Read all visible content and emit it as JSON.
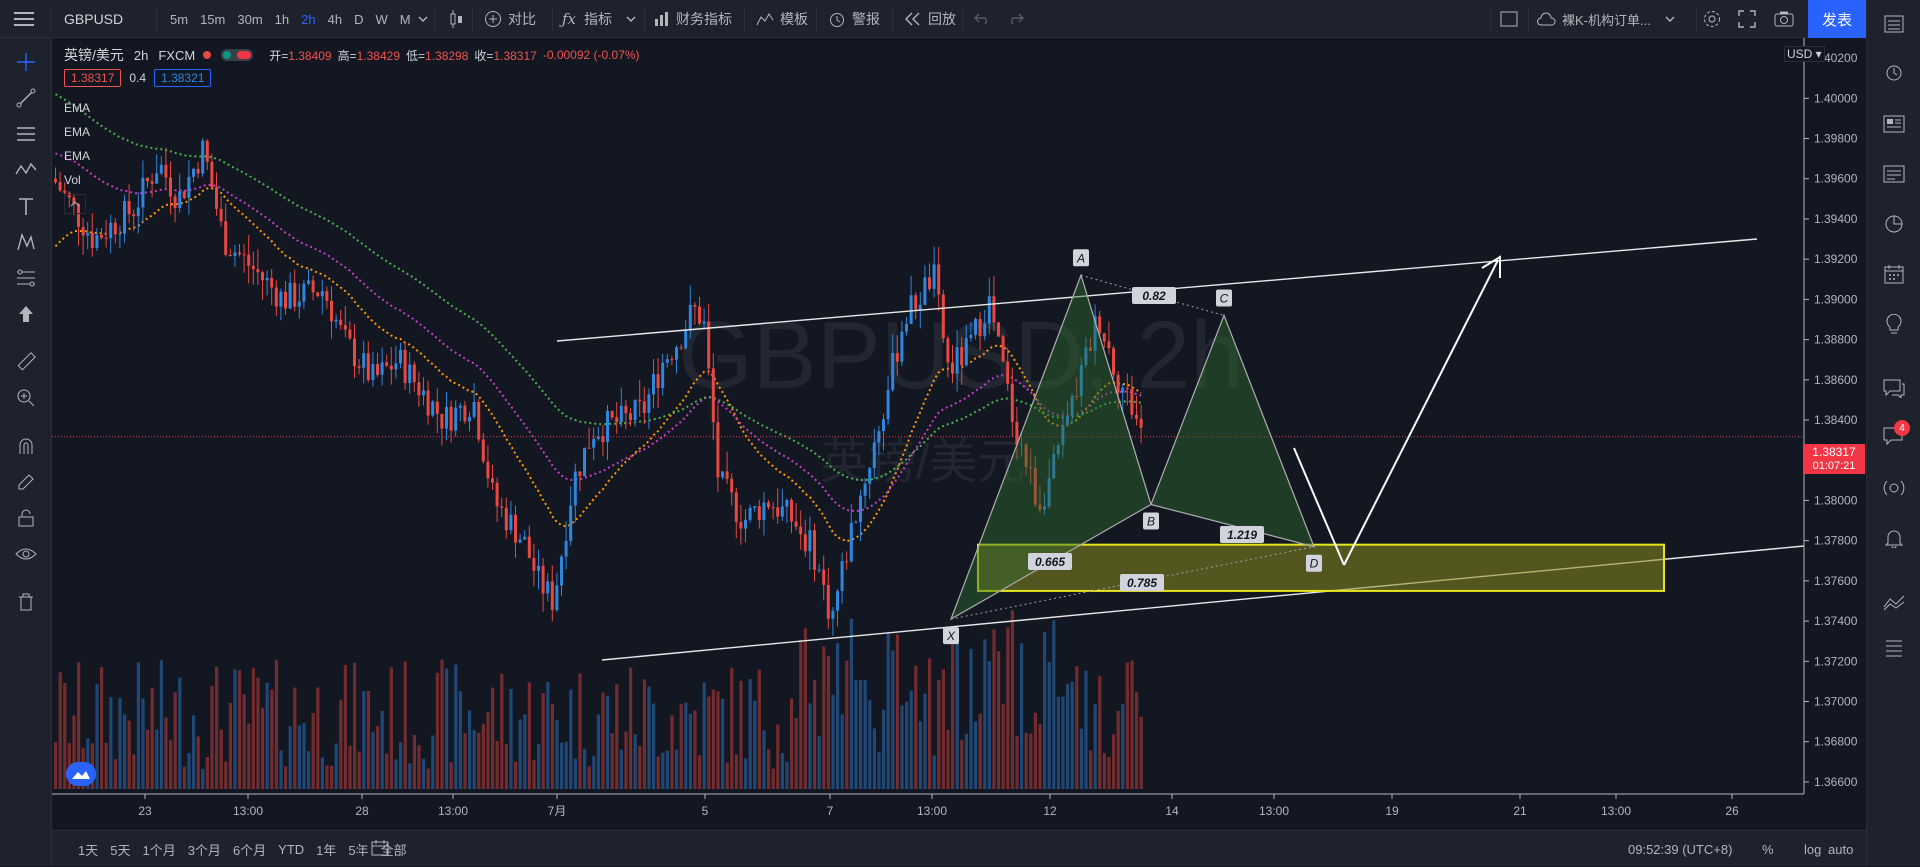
{
  "toolbar": {
    "symbol": "GBPUSD",
    "intervals": [
      "5m",
      "15m",
      "30m",
      "1h",
      "2h",
      "4h",
      "D",
      "W",
      "M"
    ],
    "active_interval": "2h",
    "compare": "对比",
    "indicators": "指标",
    "financials": "财务指标",
    "templates": "模板",
    "alert": "警报",
    "replay": "回放",
    "layout_name": "裸K-机构订单...",
    "publish": "发表"
  },
  "legend": {
    "title": "英镑/美元",
    "interval": "2h",
    "source": "FXCM",
    "open_label": "开=",
    "open": "1.38409",
    "high_label": "高=",
    "high": "1.38429",
    "low_label": "低=",
    "low": "1.38298",
    "close_label": "收=",
    "close": "1.38317",
    "change": "-0.00092 (-0.07%)",
    "bid": "1.38317",
    "spread": "0.4",
    "ask": "1.38321",
    "studies": [
      "EMA",
      "EMA",
      "EMA",
      "Vol"
    ]
  },
  "watermark": {
    "symbol": "GBPUSD, 2h",
    "name": "英镑/美元"
  },
  "price_axis": {
    "currency": "USD",
    "current_price": "1.38317",
    "countdown": "01:07:21"
  },
  "chart_data": {
    "type": "candlestick",
    "title": "英镑/美元",
    "y_ticks": [
      "1.40200",
      "1.40000",
      "1.39800",
      "1.39600",
      "1.39400",
      "1.39200",
      "1.39000",
      "1.38800",
      "1.38600",
      "1.38400",
      "1.38200",
      "1.38000",
      "1.37800",
      "1.37600",
      "1.37400",
      "1.37200",
      "1.37000",
      "1.36800",
      "1.36600"
    ],
    "ylim": [
      1.3654,
      1.403
    ],
    "x_ticks": [
      "23",
      "13:00",
      "28",
      "13:00",
      "7月",
      "5",
      "7",
      "13:00",
      "12",
      "14",
      "13:00",
      "19",
      "21",
      "13:00",
      "26"
    ],
    "harmonic_pattern": {
      "points": [
        {
          "label": "X",
          "price": 1.3741
        },
        {
          "label": "A",
          "price": 1.3912
        },
        {
          "label": "B",
          "price": 1.3798
        },
        {
          "label": "C",
          "price": 1.3892
        },
        {
          "label": "D",
          "price": 1.3777
        }
      ],
      "ratios": [
        "0.82",
        "0.665",
        "1.219",
        "0.785"
      ]
    },
    "target_zone": {
      "top": 1.3778,
      "bottom": 1.3755
    },
    "current_price": 1.38317
  },
  "bottom": {
    "ranges": [
      "1天",
      "5天",
      "1个月",
      "3个月",
      "6个月",
      "YTD",
      "1年",
      "5年",
      "全部"
    ],
    "clock": "09:52:39 (UTC+8)",
    "percent": "%",
    "log": "log",
    "auto": "auto"
  },
  "colors": {
    "up": "#2e86de",
    "down": "#e8483f",
    "accent": "#2962ff",
    "ema1": "#4caf50",
    "ema2": "#c43fc4",
    "ema3": "#ff9800",
    "zone": "#e6e620"
  }
}
